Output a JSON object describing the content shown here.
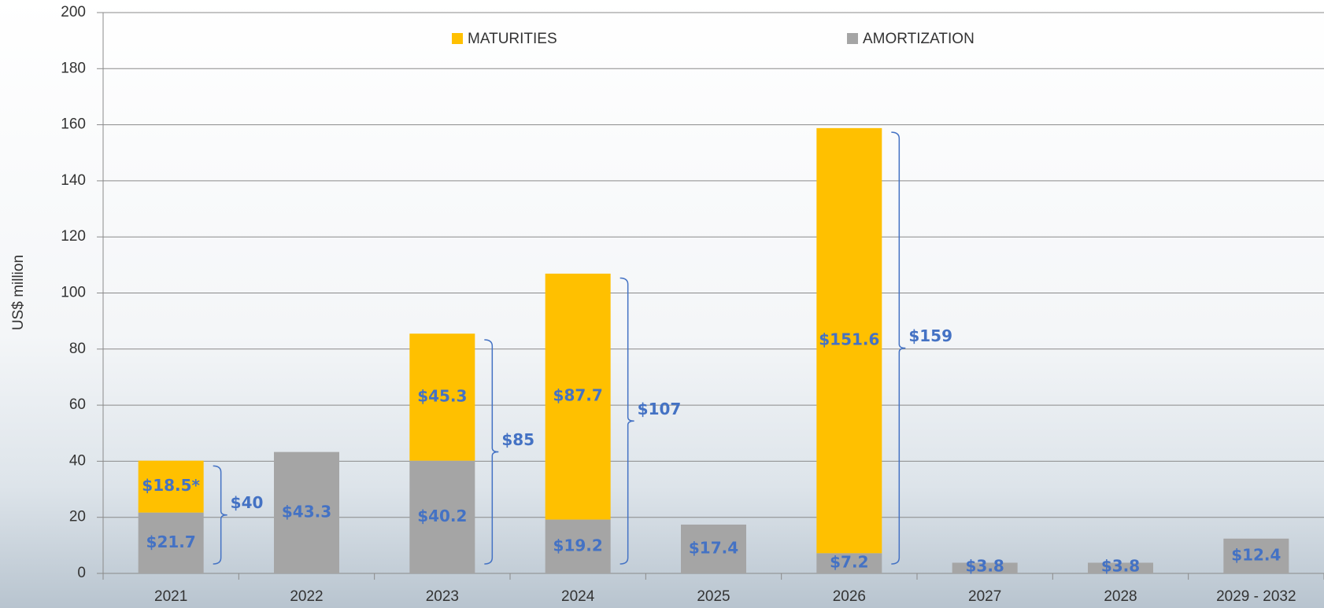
{
  "chart_data": {
    "type": "stacked-bar",
    "y_label": "US$ million",
    "categories": [
      "2021",
      "2022",
      "2023",
      "2024",
      "2025",
      "2026",
      "2027",
      "2028",
      "2029 - 2032"
    ],
    "series": [
      {
        "name": "AMORTIZATION",
        "color": "#a5a5a5",
        "values": [
          21.7,
          43.3,
          40.2,
          19.2,
          17.4,
          7.2,
          3.8,
          3.8,
          12.4
        ],
        "value_labels": [
          "$21.7",
          "$43.3",
          "$40.2",
          "$19.2",
          "$17.4",
          "$7.2",
          "$3.8",
          "$3.8",
          "$12.4"
        ]
      },
      {
        "name": "MATURITIES",
        "color": "#ffc000",
        "values": [
          18.5,
          null,
          45.3,
          87.7,
          null,
          151.6,
          null,
          null,
          null
        ],
        "value_labels": [
          "$18.5*",
          null,
          "$45.3",
          "$87.7",
          null,
          "$151.6",
          null,
          null,
          null
        ]
      }
    ],
    "totals": {
      "values": [
        40,
        null,
        85,
        107,
        null,
        159,
        null,
        null,
        null
      ],
      "value_labels": [
        "$40",
        null,
        "$85",
        "$107",
        null,
        "$159",
        null,
        null,
        null
      ]
    },
    "ylim": [
      0,
      200
    ],
    "yticks": [
      0,
      20,
      40,
      60,
      80,
      100,
      120,
      140,
      160,
      180,
      200
    ],
    "grid": true,
    "legend": "top"
  }
}
